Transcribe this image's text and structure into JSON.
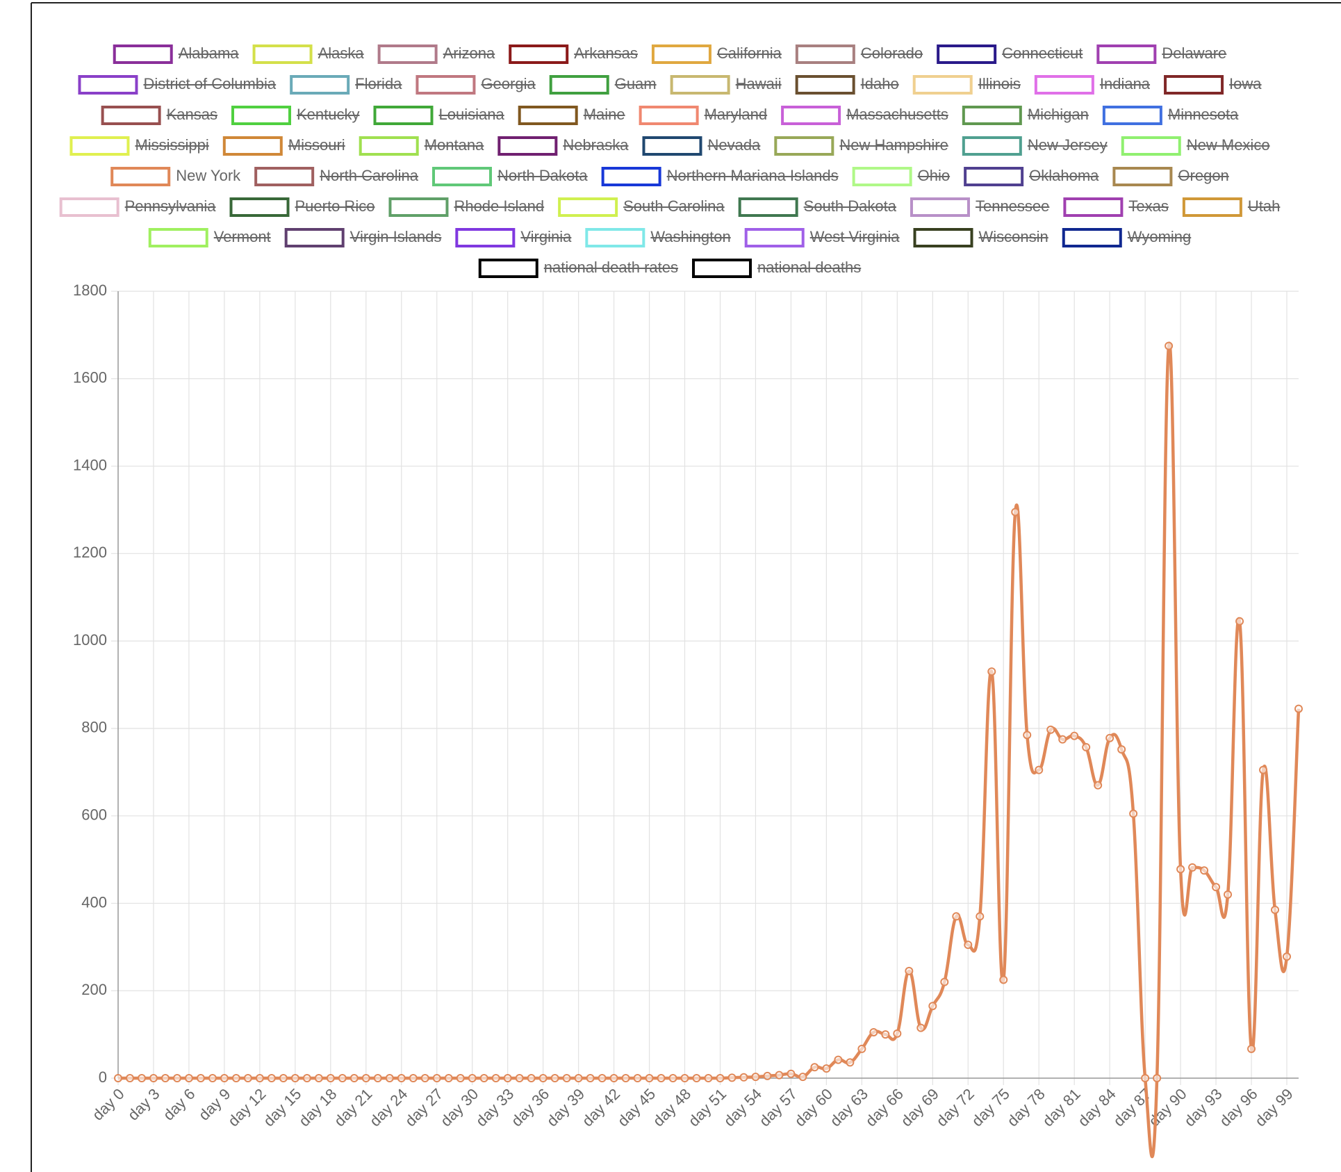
{
  "chart_data": {
    "type": "line",
    "series": [
      {
        "name": "Alabama",
        "color": "#8a2f9a",
        "hidden": true
      },
      {
        "name": "Alaska",
        "color": "#d4e04a",
        "hidden": true
      },
      {
        "name": "Arizona",
        "color": "#b07a8a",
        "hidden": true
      },
      {
        "name": "Arkansas",
        "color": "#8b1a1a",
        "hidden": true
      },
      {
        "name": "California",
        "color": "#e0a840",
        "hidden": true
      },
      {
        "name": "Colorado",
        "color": "#a88080",
        "hidden": true
      },
      {
        "name": "Connecticut",
        "color": "#2a1a8a",
        "hidden": true
      },
      {
        "name": "Delaware",
        "color": "#a040b0",
        "hidden": true
      },
      {
        "name": "District of Columbia",
        "color": "#8a40c8",
        "hidden": true
      },
      {
        "name": "Florida",
        "color": "#6aaab8",
        "hidden": true
      },
      {
        "name": "Georgia",
        "color": "#c07880",
        "hidden": true
      },
      {
        "name": "Guam",
        "color": "#40a040",
        "hidden": true
      },
      {
        "name": "Hawaii",
        "color": "#c8b870",
        "hidden": true
      },
      {
        "name": "Idaho",
        "color": "#6a5030",
        "hidden": true
      },
      {
        "name": "Illinois",
        "color": "#f0d090",
        "hidden": true
      },
      {
        "name": "Indiana",
        "color": "#e070e8",
        "hidden": true
      },
      {
        "name": "Iowa",
        "color": "#802828",
        "hidden": true
      },
      {
        "name": "Kansas",
        "color": "#985050",
        "hidden": true
      },
      {
        "name": "Kentucky",
        "color": "#50d040",
        "hidden": true
      },
      {
        "name": "Louisiana",
        "color": "#40a838",
        "hidden": true
      },
      {
        "name": "Maine",
        "color": "#805820",
        "hidden": true
      },
      {
        "name": "Maryland",
        "color": "#f08870",
        "hidden": true
      },
      {
        "name": "Massachusetts",
        "color": "#c860d8",
        "hidden": true
      },
      {
        "name": "Michigan",
        "color": "#609850",
        "hidden": true
      },
      {
        "name": "Minnesota",
        "color": "#4070e0",
        "hidden": true
      },
      {
        "name": "Mississippi",
        "color": "#e0f050",
        "hidden": true
      },
      {
        "name": "Missouri",
        "color": "#d08838",
        "hidden": true
      },
      {
        "name": "Montana",
        "color": "#a0e050",
        "hidden": true
      },
      {
        "name": "Nebraska",
        "color": "#702070",
        "hidden": true
      },
      {
        "name": "Nevada",
        "color": "#204870",
        "hidden": true
      },
      {
        "name": "New Hampshire",
        "color": "#98a858",
        "hidden": true
      },
      {
        "name": "New Jersey",
        "color": "#50a090",
        "hidden": true
      },
      {
        "name": "New Mexico",
        "color": "#90f070",
        "hidden": true
      },
      {
        "name": "New York",
        "color": "#e08858",
        "hidden": false,
        "values": [
          0,
          0,
          0,
          0,
          0,
          0,
          0,
          0,
          0,
          0,
          0,
          0,
          0,
          0,
          0,
          0,
          0,
          0,
          0,
          0,
          0,
          0,
          0,
          0,
          0,
          0,
          0,
          0,
          0,
          0,
          0,
          0,
          0,
          0,
          0,
          0,
          0,
          0,
          0,
          0,
          0,
          0,
          0,
          0,
          0,
          0,
          0,
          0,
          0,
          0,
          0,
          0,
          1,
          2,
          3,
          5,
          7,
          10,
          3,
          25,
          22,
          42,
          36,
          67,
          105,
          100,
          102,
          245,
          115,
          165,
          220,
          370,
          305,
          370,
          930,
          225,
          1295,
          785,
          705,
          797,
          775,
          783,
          757,
          670,
          778,
          752,
          605,
          0,
          0,
          1675,
          478,
          482,
          475,
          437,
          420,
          1045,
          67,
          705,
          385,
          278,
          845
        ]
      },
      {
        "name": "North Carolina",
        "color": "#a06060",
        "hidden": true
      },
      {
        "name": "North Dakota",
        "color": "#60c878",
        "hidden": true
      },
      {
        "name": "Northern Mariana Islands",
        "color": "#1838d8",
        "hidden": true
      },
      {
        "name": "Ohio",
        "color": "#b0f888",
        "hidden": true
      },
      {
        "name": "Oklahoma",
        "color": "#504090",
        "hidden": true
      },
      {
        "name": "Oregon",
        "color": "#a88850",
        "hidden": true
      },
      {
        "name": "Pennsylvania",
        "color": "#e8c0d0",
        "hidden": true
      },
      {
        "name": "Puerto Rico",
        "color": "#386838",
        "hidden": true
      },
      {
        "name": "Rhode Island",
        "color": "#60a068",
        "hidden": true
      },
      {
        "name": "South Carolina",
        "color": "#d0f050",
        "hidden": true
      },
      {
        "name": "South Dakota",
        "color": "#407850",
        "hidden": true
      },
      {
        "name": "Tennessee",
        "color": "#b890c8",
        "hidden": true
      },
      {
        "name": "Texas",
        "color": "#a040b0",
        "hidden": true
      },
      {
        "name": "Utah",
        "color": "#d09838",
        "hidden": true
      },
      {
        "name": "Vermont",
        "color": "#a0f060",
        "hidden": true
      },
      {
        "name": "Virgin Islands",
        "color": "#604070",
        "hidden": true
      },
      {
        "name": "Virginia",
        "color": "#8038e0",
        "hidden": true
      },
      {
        "name": "Washington",
        "color": "#80e8e8",
        "hidden": true
      },
      {
        "name": "West Virginia",
        "color": "#a060e8",
        "hidden": true
      },
      {
        "name": "Wisconsin",
        "color": "#384020",
        "hidden": true
      },
      {
        "name": "Wyoming",
        "color": "#102890",
        "hidden": true
      },
      {
        "name": "national death rates",
        "color": "#000000",
        "hidden": true
      },
      {
        "name": "national deaths",
        "color": "#000000",
        "hidden": true
      }
    ],
    "categories": [
      "day 0",
      null,
      null,
      "day 3",
      null,
      null,
      "day 6",
      null,
      null,
      "day 9",
      null,
      null,
      "day 12",
      null,
      null,
      "day 15",
      null,
      null,
      "day 18",
      null,
      null,
      "day 21",
      null,
      null,
      "day 24",
      null,
      null,
      "day 27",
      null,
      null,
      "day 30",
      null,
      null,
      "day 33",
      null,
      null,
      "day 36",
      null,
      null,
      "day 39",
      null,
      null,
      "day 42",
      null,
      null,
      "day 45",
      null,
      null,
      "day 48",
      null,
      null,
      "day 51",
      null,
      null,
      "day 54",
      null,
      null,
      "day 57",
      null,
      null,
      "day 60",
      null,
      null,
      "day 63",
      null,
      null,
      "day 66",
      null,
      null,
      "day 69",
      null,
      null,
      "day 72",
      null,
      null,
      "day 75",
      null,
      null,
      "day 78",
      null,
      null,
      "day 81",
      null,
      null,
      "day 84",
      null,
      null,
      "day 87",
      null,
      null,
      "day 90",
      null,
      null,
      "day 93",
      null,
      null,
      "day 96",
      null,
      null,
      "day 99",
      null
    ],
    "ylim": [
      0,
      1800
    ],
    "yticks": [
      0,
      200,
      400,
      600,
      800,
      1000,
      1200,
      1400,
      1600,
      1800
    ],
    "grid": true
  }
}
